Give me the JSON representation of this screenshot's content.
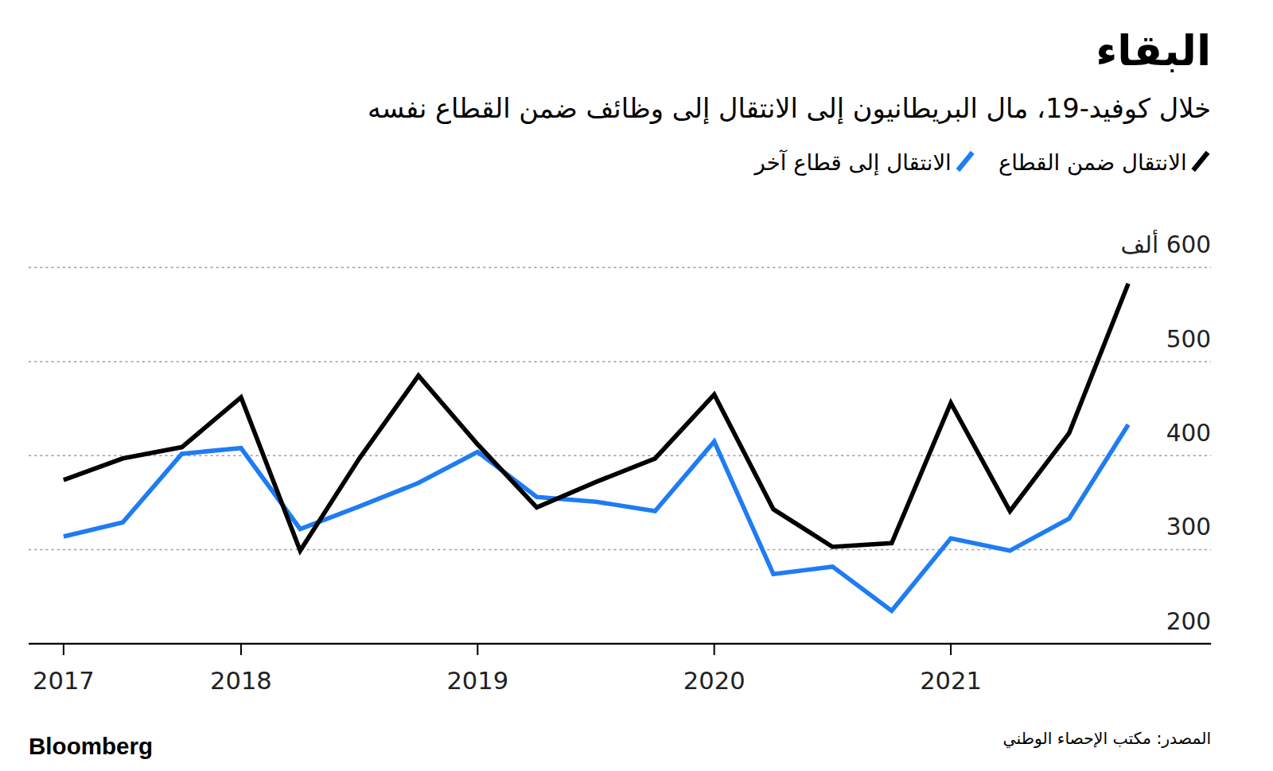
{
  "chart_data": {
    "type": "line",
    "title": "البقاء",
    "subtitle": "خلال كوفيد-19، مال البريطانيون إلى الانتقال إلى وظائف ضمن القطاع نفسه",
    "source": "المصدر: مكتب الإحصاء الوطني",
    "brand": "Bloomberg",
    "categories": [
      "2017",
      null,
      null,
      "2018",
      null,
      null,
      null,
      "2019",
      null,
      null,
      null,
      "2020",
      null,
      null,
      null,
      "2021",
      null,
      null,
      null
    ],
    "series": [
      {
        "name": "الانتقال ضمن القطاع",
        "color": "#000000",
        "values": [
          374,
          397,
          409,
          462,
          299,
          397,
          485,
          412,
          345,
          372,
          397,
          465,
          343,
          303,
          307,
          456,
          341,
          424,
          583
        ]
      },
      {
        "name": "الانتقال إلى قطاع آخر",
        "color": "#1f7cf2",
        "values": [
          314,
          329,
          402,
          408,
          322,
          346,
          371,
          404,
          356,
          351,
          341,
          415,
          274,
          282,
          235,
          312,
          299,
          333,
          433
        ]
      }
    ],
    "ylim": [
      200,
      600
    ],
    "yticks": [
      200,
      300,
      400,
      500,
      {
        "value": 600,
        "label": "600 ألف"
      }
    ],
    "grid": true,
    "legend": "top-right"
  }
}
